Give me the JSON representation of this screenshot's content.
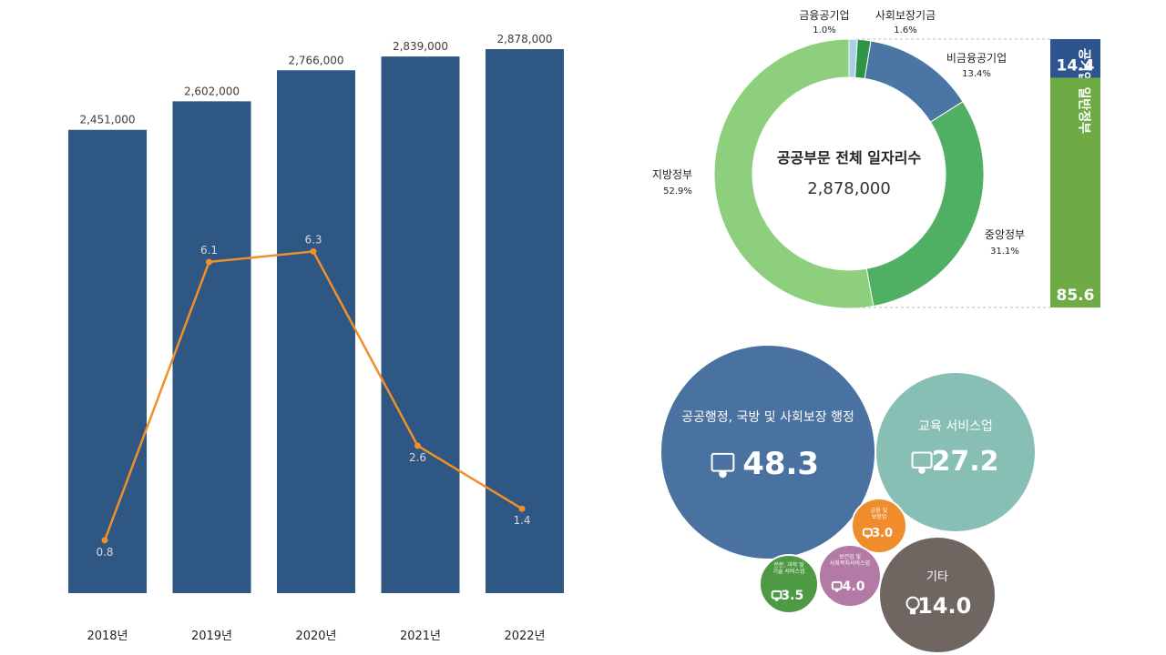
{
  "chart_data": [
    {
      "type": "bar",
      "categories": [
        "2018년",
        "2019년",
        "2020년",
        "2021년",
        "2022년"
      ],
      "series": [
        {
          "values": [
            2451000,
            2602000,
            2766000,
            2839000,
            2878000
          ],
          "labels": [
            "2,451,000",
            "2,602,000",
            "2,766,000",
            "2,839,000",
            "2,878,000"
          ],
          "color": "#2e5783"
        },
        {
          "type": "line",
          "values": [
            0.8,
            6.1,
            6.3,
            2.6,
            1.4
          ],
          "labels": [
            "0.8",
            "6.1",
            "6.3",
            "2.6",
            "1.4"
          ],
          "color": "#f0902a"
        }
      ],
      "ylim": [
        0,
        2878000
      ],
      "grid": false
    },
    {
      "type": "pie",
      "center_title": "공공부문 전체 일자리수",
      "center_value": "2,878,000",
      "slices": [
        {
          "label": "금융공기업",
          "pct_label": "1.0%",
          "value": 1.0,
          "color": "#a9cfe8"
        },
        {
          "label": "사회보장기금",
          "pct_label": "1.6%",
          "value": 1.6,
          "color": "#2e9448"
        },
        {
          "label": "비금융공기업",
          "pct_label": "13.4%",
          "value": 13.4,
          "color": "#4a75a5"
        },
        {
          "label": "중앙정부",
          "pct_label": "31.1%",
          "value": 31.1,
          "color": "#4fb063"
        },
        {
          "label": "지방정부",
          "pct_label": "52.9%",
          "value": 52.9,
          "color": "#8dcf7d"
        }
      ],
      "stack": [
        {
          "label": "공기업",
          "value": 14.4,
          "value_label": "14.4",
          "color": "#2e5490"
        },
        {
          "label": "일반정부",
          "value": 85.6,
          "value_label": "85.6",
          "color": "#6eab44"
        }
      ]
    },
    {
      "type": "bubble",
      "bubbles": [
        {
          "label": "공공행정, 국방 및 사회보장 행정",
          "value": 48.3,
          "value_label": "48.3",
          "icon": "people-board-icon",
          "color": "#4a72a0"
        },
        {
          "label": "교육 서비스업",
          "value": 27.2,
          "value_label": "27.2",
          "icon": "teacher-board-icon",
          "color": "#87bfb5"
        },
        {
          "label": "금융 및 보험업",
          "value": 3.0,
          "value_label": "3.0",
          "icon": "money-icon",
          "color": "#ef8d2d"
        },
        {
          "label": "보건업 및 사회복지서비스업",
          "value": 4.0,
          "value_label": "4.0",
          "icon": "hand-heart-icon",
          "color": "#b27aa4"
        },
        {
          "label": "전문, 과학 및 기술 서비스업",
          "value": 3.5,
          "value_label": "3.5",
          "icon": "microscope-icon",
          "color": "#4e9a44"
        },
        {
          "label": "기타",
          "value": 14.0,
          "value_label": "14.0",
          "icon": "lightbulb-icon",
          "color": "#6f6561"
        }
      ]
    }
  ]
}
